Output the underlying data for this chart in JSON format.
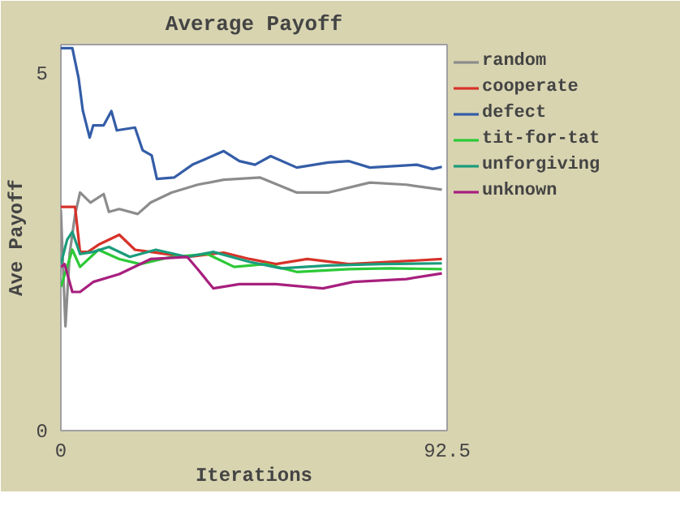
{
  "chart_data": {
    "type": "line",
    "title": "Average Payoff",
    "xlabel": "Iterations",
    "ylabel": "Ave Payoff",
    "xlim": [
      0,
      92.5
    ],
    "xticks": [
      0,
      92.5
    ],
    "ylim": [
      0,
      5.4
    ],
    "yticks": [
      0,
      5
    ],
    "grid": false,
    "legend": "right",
    "marker": "none",
    "line_style": "solid",
    "series": [
      {
        "name": "random",
        "color": "#8c8c8c",
        "x": [
          0,
          0.5,
          1.1,
          2.1,
          3.4,
          4.6,
          7.1,
          10.25,
          11.5,
          14,
          18.4,
          21.5,
          26.5,
          32.75,
          39,
          47.75,
          56.5,
          64,
          74,
          82.75,
          91.25
        ],
        "values": [
          3.09,
          2.33,
          1.46,
          2.47,
          3.02,
          3.33,
          3.19,
          3.31,
          3.06,
          3.1,
          3.03,
          3.19,
          3.33,
          3.44,
          3.51,
          3.54,
          3.33,
          3.33,
          3.47,
          3.44,
          3.37
        ]
      },
      {
        "name": "cooperate",
        "color": "#d73229",
        "x": [
          0,
          3.4,
          4.6,
          6.5,
          9,
          14,
          17.75,
          21.5,
          30.25,
          39,
          45.25,
          51.5,
          59,
          69,
          79,
          91.25
        ],
        "values": [
          3.13,
          3.13,
          2.5,
          2.5,
          2.6,
          2.74,
          2.53,
          2.5,
          2.43,
          2.49,
          2.4,
          2.33,
          2.4,
          2.33,
          2.36,
          2.4
        ]
      },
      {
        "name": "defect",
        "color": "#345da7",
        "x": [
          0,
          2.75,
          4.25,
          5.25,
          6.9,
          7.75,
          10.25,
          12.1,
          13.4,
          17.75,
          19.6,
          21.75,
          23,
          27.1,
          31.5,
          39,
          42.75,
          46.5,
          50.25,
          56.5,
          64,
          69,
          74,
          85.25,
          89,
          91.25
        ],
        "values": [
          5.35,
          5.35,
          4.93,
          4.48,
          4.1,
          4.27,
          4.27,
          4.47,
          4.2,
          4.24,
          3.92,
          3.85,
          3.52,
          3.54,
          3.72,
          3.91,
          3.77,
          3.72,
          3.84,
          3.68,
          3.75,
          3.77,
          3.68,
          3.72,
          3.66,
          3.69
        ]
      },
      {
        "name": "tit-for-tat",
        "color": "#2cc937",
        "x": [
          0,
          2.75,
          4.6,
          9,
          14,
          19,
          26.5,
          35.1,
          41.5,
          49,
          56.5,
          69,
          79,
          91.25
        ],
        "values": [
          2.01,
          2.53,
          2.29,
          2.53,
          2.4,
          2.33,
          2.43,
          2.47,
          2.29,
          2.33,
          2.22,
          2.26,
          2.27,
          2.26
        ]
      },
      {
        "name": "unforgiving",
        "color": "#1a9b7c",
        "x": [
          0,
          1.5,
          2.75,
          4.6,
          7.75,
          11.5,
          16.5,
          22.75,
          30.25,
          36.5,
          45.25,
          52.75,
          64,
          76.5,
          91.25
        ],
        "values": [
          2.33,
          2.67,
          2.78,
          2.47,
          2.5,
          2.57,
          2.43,
          2.53,
          2.43,
          2.5,
          2.36,
          2.27,
          2.31,
          2.33,
          2.34
        ]
      },
      {
        "name": "unknown",
        "color": "#a71f7e",
        "x": [
          0,
          0.9,
          2.75,
          4.6,
          7.75,
          14,
          21.5,
          30.25,
          32.75,
          36.5,
          42.75,
          51.5,
          62.75,
          70,
          82.75,
          91.25
        ],
        "values": [
          2.29,
          2.33,
          1.94,
          1.94,
          2.08,
          2.19,
          2.4,
          2.43,
          2.26,
          1.99,
          2.05,
          2.05,
          1.99,
          2.08,
          2.12,
          2.2
        ]
      }
    ]
  }
}
